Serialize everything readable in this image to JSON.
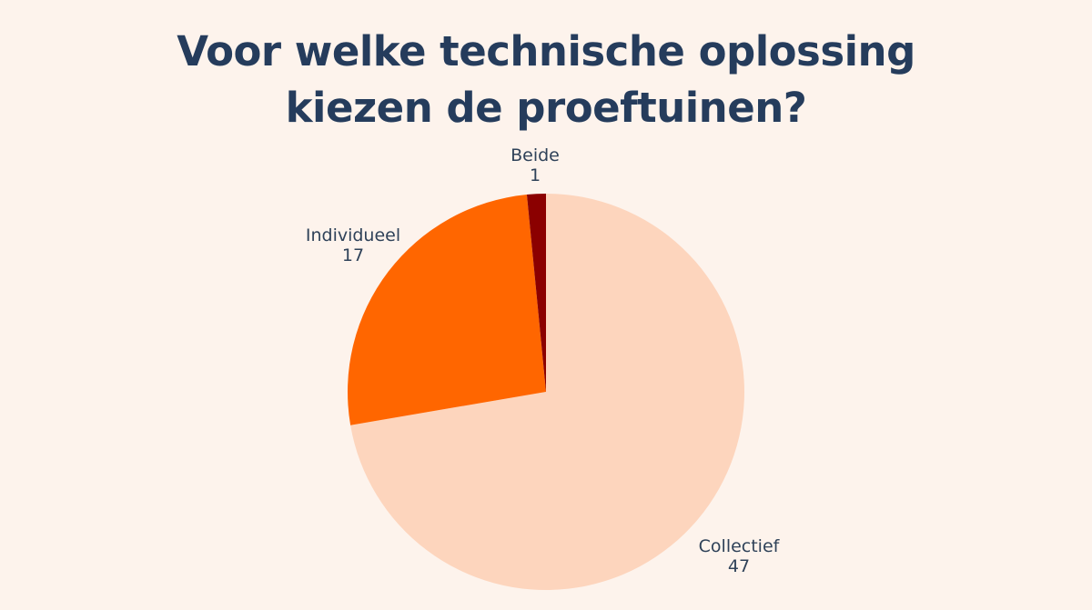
{
  "title": {
    "line1": "Voor welke technische oplossing",
    "line2": "kiezen de proeftuinen?"
  },
  "chart_data": {
    "type": "pie",
    "title": "Voor welke technische oplossing kiezen de proeftuinen?",
    "categories": [
      "Collectief",
      "Individueel",
      "Beide"
    ],
    "values": [
      47,
      17,
      1
    ],
    "colors": [
      "#fdd5bd",
      "#ff6600",
      "#8b0000"
    ],
    "start_angle": "12 o'clock",
    "direction": "clockwise",
    "labels_show": "label and value",
    "legend": false
  },
  "labels": [
    {
      "name": "Collectief",
      "value": "47"
    },
    {
      "name": "Individueel",
      "value": "17"
    },
    {
      "name": "Beide",
      "value": "1"
    }
  ],
  "colors": {
    "background": "#fdf3ec",
    "title": "#253c5c",
    "label_text": "#2f4259"
  }
}
